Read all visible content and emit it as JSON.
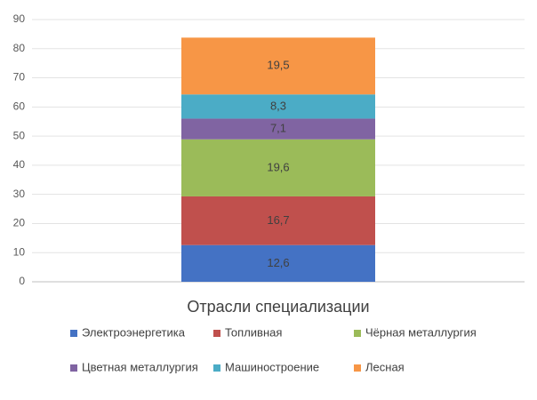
{
  "chart_data": {
    "type": "stacked_bar",
    "categories": [
      "Отрасли специализации"
    ],
    "series": [
      {
        "name": "Электроэнергетика",
        "color": "#4472c4",
        "values": [
          12.6
        ],
        "value_labels": [
          "12,6"
        ]
      },
      {
        "name": "Топливная",
        "color": "#c0504d",
        "values": [
          16.7
        ],
        "value_labels": [
          "16,7"
        ]
      },
      {
        "name": "Чёрная металлургия",
        "color": "#9bbb59",
        "values": [
          19.6
        ],
        "value_labels": [
          "19,6"
        ]
      },
      {
        "name": "Цветная металлургия",
        "color": "#8064a2",
        "values": [
          7.1
        ],
        "value_labels": [
          "7,1"
        ]
      },
      {
        "name": "Машиностроение",
        "color": "#4bacc6",
        "values": [
          8.3
        ],
        "value_labels": [
          "8,3"
        ]
      },
      {
        "name": "Лесная",
        "color": "#f79646",
        "values": [
          19.5
        ],
        "value_labels": [
          "19,5"
        ]
      }
    ],
    "ylim": [
      0,
      90
    ],
    "yticks": [
      0,
      10,
      20,
      30,
      40,
      50,
      60,
      70,
      80,
      90
    ],
    "grid": true,
    "legend": "bottom"
  }
}
